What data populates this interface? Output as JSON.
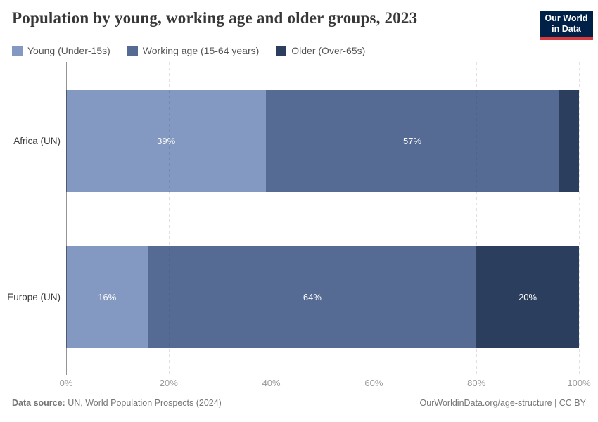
{
  "header": {
    "title": "Population by young, working age and older groups, 2023",
    "logo": {
      "line1": "Our World",
      "line2": "in Data",
      "bg_color": "#002147",
      "accent_color": "#d93a3c"
    }
  },
  "chart_data": {
    "type": "bar",
    "variant": "stacked-horizontal",
    "title": "Population by young, working age and older groups, 2023",
    "categories": [
      "Africa (UN)",
      "Europe (UN)"
    ],
    "series": [
      {
        "name": "Young (Under-15s)",
        "color": "#8499c1",
        "values": [
          39,
          16
        ]
      },
      {
        "name": "Working age (15-64 years)",
        "color": "#566b93",
        "values": [
          57,
          64
        ]
      },
      {
        "name": "Older (Over-65s)",
        "color": "#2c3e5d",
        "values": [
          4,
          20
        ]
      }
    ],
    "value_label_format": "percent",
    "label_min_percent": 5,
    "x_ticks": [
      "0%",
      "20%",
      "40%",
      "60%",
      "80%",
      "100%"
    ],
    "xlim": [
      0,
      100
    ],
    "grid": "vertical-dashed",
    "legend_position": "top-left"
  },
  "footer": {
    "source_label": "Data source:",
    "source_text": "UN, World Population Prospects (2024)",
    "link_text": "OurWorldinData.org/age-structure | CC BY"
  }
}
